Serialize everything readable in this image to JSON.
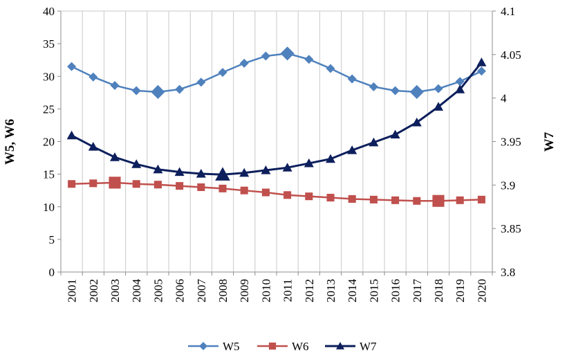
{
  "chart_data": {
    "type": "line",
    "categories": [
      "2001",
      "2002",
      "2003",
      "2004",
      "2005",
      "2006",
      "2007",
      "2008",
      "2009",
      "2010",
      "2011",
      "2012",
      "2013",
      "2014",
      "2015",
      "2016",
      "2017",
      "2018",
      "2019",
      "2020"
    ],
    "y_left": {
      "label": "W5, W6",
      "min": 0,
      "max": 40,
      "ticks": [
        "0",
        "5",
        "10",
        "15",
        "20",
        "25",
        "30",
        "35",
        "40"
      ]
    },
    "y_right": {
      "label": "W7",
      "min": 3.8,
      "max": 4.1,
      "ticks": [
        "3.8",
        "3.85",
        "3.9",
        "3.95",
        "4",
        "4.05",
        "4.1"
      ]
    },
    "grid": "vertical",
    "legend_position": "bottom",
    "series": [
      {
        "name": "W5",
        "axis": "left",
        "color": "#4f81bd",
        "marker": "diamond",
        "values": [
          31.5,
          29.9,
          28.6,
          27.8,
          27.6,
          28.0,
          29.1,
          30.6,
          32.0,
          33.1,
          33.5,
          32.6,
          31.2,
          29.6,
          28.4,
          27.8,
          27.6,
          28.1,
          29.2,
          30.8
        ]
      },
      {
        "name": "W6",
        "axis": "left",
        "color": "#c0504d",
        "marker": "square",
        "values": [
          13.5,
          13.6,
          13.7,
          13.5,
          13.4,
          13.2,
          13.0,
          12.8,
          12.5,
          12.2,
          11.8,
          11.6,
          11.4,
          11.2,
          11.1,
          11.0,
          10.9,
          10.9,
          11.0,
          11.1
        ]
      },
      {
        "name": "W7",
        "axis": "right",
        "color": "#0d1f5c",
        "marker": "triangle",
        "values": [
          3.957,
          3.944,
          3.932,
          3.924,
          3.918,
          3.915,
          3.913,
          3.912,
          3.914,
          3.917,
          3.92,
          3.925,
          3.93,
          3.94,
          3.949,
          3.958,
          3.972,
          3.99,
          4.01,
          4.041
        ]
      }
    ]
  }
}
